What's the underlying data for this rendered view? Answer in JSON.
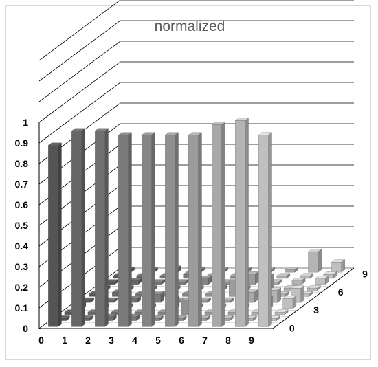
{
  "chart_data": {
    "type": "bar",
    "subtype": "3d-column",
    "title": "normalized",
    "x_categories": [
      "0",
      "1",
      "2",
      "3",
      "4",
      "5",
      "6",
      "7",
      "8",
      "9"
    ],
    "depth_ticks": [
      "0",
      "3",
      "6",
      "9"
    ],
    "y_ticks": [
      "0",
      "0.1",
      "0.2",
      "0.3",
      "0.4",
      "0.5",
      "0.6",
      "0.7",
      "0.8",
      "0.9",
      "1"
    ],
    "ylim": [
      0,
      1
    ],
    "depth_rows": 10,
    "grid": true,
    "legend": "none",
    "colors": [
      "#555555",
      "#666666",
      "#707070",
      "#7a7a7a",
      "#858585",
      "#909090",
      "#9c9c9c",
      "#a8a8a8",
      "#b4b4b4",
      "#c0c0c0"
    ],
    "series": [
      {
        "depth": 0,
        "values": [
          0.88,
          0.95,
          0.95,
          0.93,
          0.93,
          0.93,
          0.93,
          0.98,
          1.0,
          0.93
        ]
      },
      {
        "depth": 1,
        "values": [
          0.0,
          0.0,
          0.02,
          0.02,
          0.0,
          0.0,
          0.0,
          0.0,
          0.0,
          0.0
        ]
      },
      {
        "depth": 2,
        "values": [
          0.0,
          0.0,
          0.0,
          0.0,
          0.0,
          0.07,
          0.0,
          0.0,
          0.0,
          0.0
        ]
      },
      {
        "depth": 3,
        "values": [
          0.02,
          0.0,
          0.0,
          0.0,
          0.05,
          0.0,
          0.0,
          0.0,
          0.05,
          0.05
        ]
      },
      {
        "depth": 4,
        "values": [
          0.0,
          0.0,
          0.02,
          0.04,
          0.0,
          0.0,
          0.0,
          0.05,
          0.06,
          0.07
        ]
      },
      {
        "depth": 5,
        "values": [
          0.0,
          0.02,
          0.0,
          0.0,
          0.0,
          0.0,
          0.08,
          0.0,
          0.0,
          0.0
        ]
      },
      {
        "depth": 6,
        "values": [
          0.0,
          0.0,
          0.0,
          0.0,
          0.0,
          0.02,
          0.0,
          0.07,
          0.0,
          0.0
        ]
      },
      {
        "depth": 7,
        "values": [
          0.0,
          0.02,
          0.0,
          0.0,
          0.03,
          0.0,
          0.05,
          0.0,
          0.02,
          0.03
        ]
      },
      {
        "depth": 8,
        "values": [
          0.0,
          0.0,
          0.0,
          0.02,
          0.0,
          0.0,
          0.0,
          0.0,
          0.0,
          0.02
        ]
      },
      {
        "depth": 9,
        "values": [
          0.0,
          0.0,
          0.02,
          0.0,
          0.0,
          0.0,
          0.0,
          0.0,
          0.1,
          0.05
        ]
      }
    ]
  }
}
